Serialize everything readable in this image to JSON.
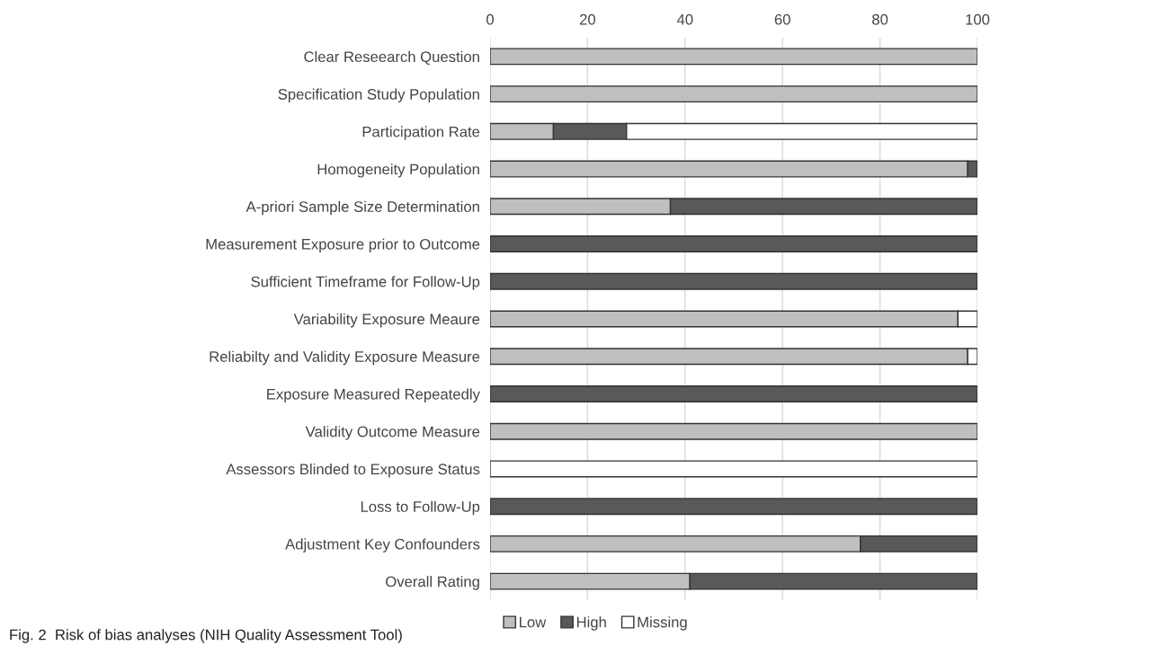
{
  "chart_data": {
    "type": "bar",
    "orientation": "horizontal",
    "stacked": true,
    "categories": [
      "Clear Reseearch Question",
      "Specification Study Population",
      "Participation Rate",
      "Homogeneity Population",
      "A-priori Sample Size Determination",
      "Measurement Exposure prior to Outcome",
      "Sufficient Timeframe for Follow-Up",
      "Variability Exposure Meaure",
      "Reliabilty and Validity Exposure Measure",
      "Exposure Measured Repeatedly",
      "Validity Outcome Measure",
      "Assessors Blinded to Exposure Status",
      "Loss to Follow-Up",
      "Adjustment Key Confounders",
      "Overall Rating"
    ],
    "series": [
      {
        "name": "Low",
        "color": "#bfbfbf",
        "values": [
          100,
          100,
          13,
          98,
          37,
          0,
          0,
          96,
          98,
          0,
          100,
          0,
          0,
          76,
          41
        ]
      },
      {
        "name": "High",
        "color": "#595959",
        "values": [
          0,
          0,
          15,
          2,
          63,
          100,
          100,
          0,
          0,
          100,
          0,
          0,
          100,
          24,
          59
        ]
      },
      {
        "name": "Missing",
        "color": "#ffffff",
        "values": [
          0,
          0,
          72,
          0,
          0,
          0,
          0,
          4,
          2,
          0,
          0,
          100,
          0,
          0,
          0
        ]
      }
    ],
    "xlim": [
      0,
      100
    ],
    "xticks": [
      0,
      20,
      40,
      60,
      80,
      100
    ],
    "grid": "x",
    "legend": "bottom",
    "annotations": [
      "Fig. 2  Risk of bias analyses (NIH Quality Assessment Tool)"
    ]
  }
}
